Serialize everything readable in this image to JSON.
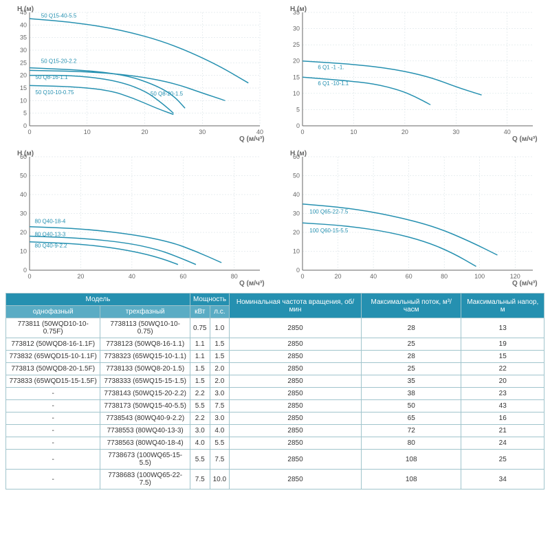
{
  "charts": [
    {
      "ylabel": "H (м)",
      "xlabel": "Q (м/ч³)",
      "xlim": [
        0,
        40
      ],
      "xtick_step": 10,
      "ylim": [
        0,
        45
      ],
      "ytick_step": 5,
      "grid_color": "#d0dde0",
      "curve_color": "#2590b0",
      "curves": [
        {
          "label": "50  Q15-40-5.5",
          "lx": 2,
          "ly": 43,
          "pts": [
            [
              0,
              42.5
            ],
            [
              8,
              41
            ],
            [
              16,
              38
            ],
            [
              24,
              33
            ],
            [
              32,
              25
            ],
            [
              38,
              17
            ]
          ]
        },
        {
          "label": "50  Q15-20-2.2",
          "lx": 2,
          "ly": 25,
          "pts": [
            [
              0,
              23
            ],
            [
              10,
              22
            ],
            [
              17,
              20
            ],
            [
              22,
              16
            ],
            [
              25,
              12
            ],
            [
              27,
              7
            ]
          ]
        },
        {
          "label": "50  Q8-16-1.1",
          "lx": 1,
          "ly": 18.5,
          "pts": [
            [
              0,
              20
            ],
            [
              8,
              20
            ],
            [
              15,
              18
            ],
            [
              20,
              14
            ],
            [
              23,
              9
            ],
            [
              25,
              5
            ]
          ]
        },
        {
          "label": "50  Q10-10-0.75",
          "lx": 1,
          "ly": 12.5,
          "pts": [
            [
              0,
              16
            ],
            [
              8,
              15.5
            ],
            [
              14,
              14
            ],
            [
              18,
              11
            ],
            [
              22,
              7
            ],
            [
              25,
              4.5
            ]
          ]
        },
        {
          "label": "50  Q8-20-1.5",
          "lx": 21,
          "ly": 12,
          "pts": [
            [
              0,
              22
            ],
            [
              10,
              21.5
            ],
            [
              18,
              20
            ],
            [
              25,
              17
            ],
            [
              30,
              13
            ],
            [
              34,
              10
            ]
          ]
        }
      ]
    },
    {
      "ylabel": "H (м)",
      "xlabel": "Q (м/ч³)",
      "xlim": [
        0,
        45
      ],
      "xtick_step": 10,
      "ylim": [
        0,
        35
      ],
      "ytick_step": 5,
      "grid_color": "#d0dde0",
      "curve_color": "#2590b0",
      "curves": [
        {
          "label": "6    Q1   -1   -1.",
          "lx": 3,
          "ly": 17.5,
          "pts": [
            [
              0,
              20
            ],
            [
              10,
              19
            ],
            [
              18,
              17.5
            ],
            [
              25,
              15
            ],
            [
              30,
              12
            ],
            [
              35,
              9.5
            ]
          ]
        },
        {
          "label": "6    Q1  -10-1.1",
          "lx": 3,
          "ly": 12.5,
          "pts": [
            [
              0,
              15
            ],
            [
              8,
              14
            ],
            [
              14,
              13
            ],
            [
              19,
              11
            ],
            [
              22,
              9
            ],
            [
              25,
              6.5
            ]
          ]
        }
      ]
    },
    {
      "ylabel": "H (м)",
      "xlabel": "Q (м/ч³)",
      "xlim": [
        0,
        90
      ],
      "xtick_step": 20,
      "ylim": [
        0,
        60
      ],
      "ytick_step": 10,
      "grid_color": "#d0dde0",
      "curve_color": "#2590b0",
      "curves": [
        {
          "label": "80   Q40-18-4",
          "lx": 2,
          "ly": 25,
          "pts": [
            [
              0,
              23
            ],
            [
              20,
              22
            ],
            [
              40,
              19
            ],
            [
              55,
              15
            ],
            [
              65,
              10
            ],
            [
              75,
              4
            ]
          ]
        },
        {
          "label": "80   Q40-13-3",
          "lx": 2,
          "ly": 18,
          "pts": [
            [
              0,
              18
            ],
            [
              20,
              17
            ],
            [
              38,
              14.5
            ],
            [
              50,
              11
            ],
            [
              58,
              7
            ],
            [
              65,
              3
            ]
          ]
        },
        {
          "label": "80   Q40-9-2.2",
          "lx": 2,
          "ly": 12,
          "pts": [
            [
              0,
              15
            ],
            [
              18,
              14
            ],
            [
              32,
              12
            ],
            [
              44,
              9
            ],
            [
              52,
              6
            ],
            [
              58,
              3
            ]
          ]
        }
      ]
    },
    {
      "ylabel": "H (м)",
      "xlabel": "Q (м/ч³)",
      "xlim": [
        0,
        130
      ],
      "xtick_step": 20,
      "ylim": [
        0,
        60
      ],
      "ytick_step": 10,
      "grid_color": "#d0dde0",
      "curve_color": "#2590b0",
      "curves": [
        {
          "label": "100   Q65-22-7.5",
          "lx": 4,
          "ly": 30,
          "pts": [
            [
              0,
              35
            ],
            [
              25,
              33
            ],
            [
              50,
              29
            ],
            [
              75,
              23
            ],
            [
              95,
              15
            ],
            [
              110,
              8
            ]
          ]
        },
        {
          "label": "100   Q60-15-5.5",
          "lx": 4,
          "ly": 20,
          "pts": [
            [
              0,
              25
            ],
            [
              25,
              23.5
            ],
            [
              50,
              20
            ],
            [
              70,
              15
            ],
            [
              85,
              9
            ],
            [
              98,
              2
            ]
          ]
        }
      ]
    }
  ],
  "table": {
    "header_bg": "#2590b0",
    "subheader_bg": "#5aacc4",
    "border_color": "#a0c4cc",
    "columns_top": [
      {
        "label": "Модель",
        "span": 2
      },
      {
        "label": "Мощность",
        "span": 2
      },
      {
        "label": "Номинальная частота вращения, об/мин",
        "span": 1,
        "rowspan": 2
      },
      {
        "label": "Максимальный поток, м³/часм",
        "span": 1,
        "rowspan": 2
      },
      {
        "label": "Максимальный напор, м",
        "span": 1,
        "rowspan": 2
      }
    ],
    "columns_sub": [
      "однофазный",
      "трехфазный",
      "кВт",
      "л.с."
    ],
    "rows": [
      [
        "773811 (50WQD10-10-0.75F)",
        "7738113 (50WQ10-10-0.75)",
        "0.75",
        "1.0",
        "2850",
        "28",
        "13"
      ],
      [
        "773812 (50WQD8-16-1.1F)",
        "7738123 (50WQ8-16-1.1)",
        "1.1",
        "1.5",
        "2850",
        "25",
        "19"
      ],
      [
        "773832 (65WQD15-10-1.1F)",
        "7738323 (65WQ15-10-1.1)",
        "1.1",
        "1.5",
        "2850",
        "28",
        "15"
      ],
      [
        "773813 (50WQD8-20-1.5F)",
        "7738133 (50WQ8-20-1.5)",
        "1.5",
        "2.0",
        "2850",
        "25",
        "22"
      ],
      [
        "773833 (65WQD15-15-1.5F)",
        "7738333 (65WQ15-15-1.5)",
        "1.5",
        "2.0",
        "2850",
        "35",
        "20"
      ],
      [
        "-",
        "7738143 (50WQ15-20-2.2)",
        "2.2",
        "3.0",
        "2850",
        "38",
        "23"
      ],
      [
        "-",
        "7738173 (50WQ15-40-5.5)",
        "5.5",
        "7.5",
        "2850",
        "50",
        "43"
      ],
      [
        "-",
        "7738543 (80WQ40-9-2.2)",
        "2.2",
        "3.0",
        "2850",
        "65",
        "16"
      ],
      [
        "-",
        "7738553 (80WQ40-13-3)",
        "3.0",
        "4.0",
        "2850",
        "72",
        "21"
      ],
      [
        "-",
        "7738563 (80WQ40-18-4)",
        "4.0",
        "5.5",
        "2850",
        "80",
        "24"
      ],
      [
        "-",
        "7738673 (100WQ65-15-5.5)",
        "5.5",
        "7.5",
        "2850",
        "108",
        "25"
      ],
      [
        "-",
        "7738683 (100WQ65-22-7.5)",
        "7.5",
        "10.0",
        "2850",
        "108",
        "34"
      ]
    ]
  }
}
